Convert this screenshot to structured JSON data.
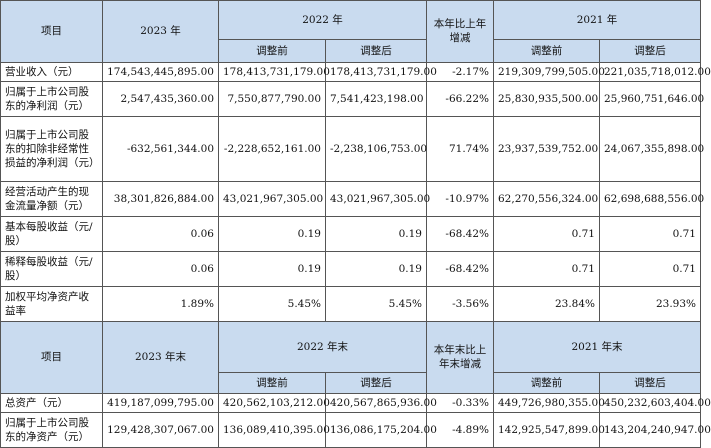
{
  "table1": {
    "header": {
      "item": "项目",
      "y2023": "2023 年",
      "y2022": "2022 年",
      "change": "本年比上年增减",
      "y2021": "2021 年",
      "before": "调整前",
      "after": "调整后"
    },
    "rows": [
      {
        "label": "营业收入（元）",
        "v2023": "174,543,445,895.00",
        "v2022b": "178,413,731,179.00",
        "v2022a": "178,413,731,179.00",
        "chg": "-2.17%",
        "v2021b": "219,309,799,505.00",
        "v2021a": "221,035,718,012.00"
      },
      {
        "label": "归属于上市公司股东的净利润（元）",
        "v2023": "2,547,435,360.00",
        "v2022b": "7,550,877,790.00",
        "v2022a": "7,541,423,198.00",
        "chg": "-66.22%",
        "v2021b": "25,830,935,500.00",
        "v2021a": "25,960,751,646.00"
      },
      {
        "label": "归属于上市公司股东的扣除非经常性损益的净利润（元）",
        "v2023": "-632,561,344.00",
        "v2022b": "-2,228,652,161.00",
        "v2022a": "-2,238,106,753.00",
        "chg": "71.74%",
        "v2021b": "23,937,539,752.00",
        "v2021a": "24,067,355,898.00"
      },
      {
        "label": "经营活动产生的现金流量净额（元）",
        "v2023": "38,301,826,884.00",
        "v2022b": "43,021,967,305.00",
        "v2022a": "43,021,967,305.00",
        "chg": "-10.97%",
        "v2021b": "62,270,556,324.00",
        "v2021a": "62,698,688,556.00"
      },
      {
        "label": "基本每股收益（元/股）",
        "v2023": "0.06",
        "v2022b": "0.19",
        "v2022a": "0.19",
        "chg": "-68.42%",
        "v2021b": "0.71",
        "v2021a": "0.71"
      },
      {
        "label": "稀释每股收益（元/股）",
        "v2023": "0.06",
        "v2022b": "0.19",
        "v2022a": "0.19",
        "chg": "-68.42%",
        "v2021b": "0.71",
        "v2021a": "0.71"
      },
      {
        "label": "加权平均净资产收益率",
        "v2023": "1.89%",
        "v2022b": "5.45%",
        "v2022a": "5.45%",
        "chg": "-3.56%",
        "v2021b": "23.84%",
        "v2021a": "23.93%"
      }
    ]
  },
  "table2": {
    "header": {
      "item": "项目",
      "y2023": "2023 年末",
      "y2022": "2022 年末",
      "change": "本年末比上年末增减",
      "y2021": "2021 年末",
      "before": "调整前",
      "after": "调整后"
    },
    "rows": [
      {
        "label": "总资产（元）",
        "v2023": "419,187,099,795.00",
        "v2022b": "420,562,103,212.00",
        "v2022a": "420,567,865,936.00",
        "chg": "-0.33%",
        "v2021b": "449,726,980,355.00",
        "v2021a": "450,232,603,404.00"
      },
      {
        "label": "归属于上市公司股东的净资产（元）",
        "v2023": "129,428,307,067.00",
        "v2022b": "136,089,410,395.00",
        "v2022a": "136,086,175,204.00",
        "chg": "-4.89%",
        "v2021b": "142,925,547,899.00",
        "v2021a": "143,204,240,947.00"
      }
    ]
  }
}
